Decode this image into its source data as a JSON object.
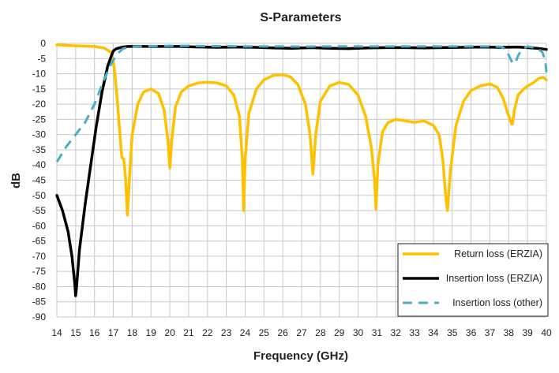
{
  "chart_data": {
    "type": "line",
    "title": "S-Parameters",
    "xlabel": "Frequency (GHz)",
    "ylabel": "dB",
    "xlim": [
      14,
      40
    ],
    "ylim": [
      -90,
      0
    ],
    "x_ticks": [
      14,
      15,
      16,
      17,
      18,
      19,
      20,
      21,
      22,
      23,
      24,
      25,
      26,
      27,
      28,
      29,
      30,
      31,
      32,
      33,
      34,
      35,
      36,
      37,
      38,
      39,
      40
    ],
    "x_tick_labels": [
      "14",
      "15",
      "16",
      "17",
      "18",
      "19",
      "20",
      "21",
      "22",
      "23",
      "24",
      "25",
      "26",
      "27",
      "28",
      "29",
      "30",
      "31",
      "32",
      "33",
      "34",
      "35",
      "36",
      "37",
      "38",
      "39",
      "40"
    ],
    "y_ticks": [
      0,
      -5,
      -10,
      -15,
      -20,
      -25,
      -30,
      -35,
      -40,
      -45,
      -50,
      -55,
      -60,
      -65,
      -70,
      -75,
      -80,
      -85,
      -90
    ],
    "y_tick_labels": [
      "0",
      "-5",
      "-10",
      "-15",
      "-20",
      "-25",
      "-30",
      "-35",
      "-40",
      "-45",
      "-50",
      "-55",
      "-60",
      "-65",
      "-70",
      "-75",
      "-80",
      "-85",
      "-90"
    ],
    "grid": true,
    "legend_position": "bottom-right",
    "series": [
      {
        "name": "Return loss (ERZIA)",
        "color": "#FFC000",
        "dash": "solid",
        "x": [
          14,
          15,
          16,
          16.5,
          16.9,
          17.05,
          17.2,
          17.35,
          17.45,
          17.55,
          17.65,
          17.75,
          17.85,
          18.0,
          18.3,
          18.6,
          19.0,
          19.4,
          19.7,
          19.9,
          20.0,
          20.1,
          20.3,
          20.6,
          21.0,
          21.5,
          22.0,
          22.5,
          23.0,
          23.4,
          23.7,
          23.85,
          23.92,
          24.0,
          24.2,
          24.6,
          25.0,
          25.5,
          26.0,
          26.4,
          26.8,
          27.2,
          27.45,
          27.6,
          27.75,
          28.0,
          28.5,
          29.0,
          29.5,
          30.0,
          30.4,
          30.7,
          30.88,
          30.95,
          31.05,
          31.3,
          31.6,
          32.0,
          32.5,
          33.0,
          33.5,
          34.0,
          34.3,
          34.5,
          34.65,
          34.75,
          34.9,
          35.2,
          35.6,
          36.0,
          36.5,
          37.0,
          37.4,
          37.7,
          37.95,
          38.15,
          38.2,
          38.3,
          38.5,
          38.8,
          39.0,
          39.3,
          39.6,
          39.85,
          40
        ],
        "y": [
          -0.5,
          -0.8,
          -1.0,
          -1.5,
          -3.0,
          -8.0,
          -18.0,
          -30.0,
          -37.5,
          -38.0,
          -44.0,
          -56.5,
          -45.0,
          -30.0,
          -20.0,
          -16.0,
          -15.0,
          -16.5,
          -22.0,
          -32.0,
          -41.0,
          -32.0,
          -21.0,
          -16.0,
          -14.0,
          -13.0,
          -12.8,
          -13.0,
          -14.0,
          -17.0,
          -24.0,
          -38.0,
          -55.0,
          -38.0,
          -23.0,
          -15.0,
          -12.0,
          -10.5,
          -10.3,
          -11.0,
          -13.5,
          -20.0,
          -30.0,
          -43.0,
          -30.0,
          -19.0,
          -14.0,
          -12.8,
          -13.5,
          -17.0,
          -24.0,
          -34.0,
          -45.0,
          -54.5,
          -40.0,
          -29.0,
          -26.0,
          -25.0,
          -25.5,
          -26.0,
          -25.5,
          -27.0,
          -30.0,
          -38.0,
          -50.0,
          -55.0,
          -42.0,
          -27.0,
          -19.0,
          -15.5,
          -14.0,
          -13.3,
          -14.5,
          -18.0,
          -23.0,
          -26.5,
          -26.5,
          -22.0,
          -17.0,
          -15.0,
          -14.0,
          -13.0,
          -11.5,
          -11.2,
          -12.0
        ]
      },
      {
        "name": "Insertion loss (ERZIA)",
        "color": "#000000",
        "dash": "solid",
        "x": [
          14,
          14.3,
          14.6,
          14.8,
          14.95,
          15.0,
          15.05,
          15.2,
          15.5,
          15.8,
          16.1,
          16.4,
          16.7,
          16.9,
          17.0,
          17.15,
          17.3,
          17.5,
          17.8,
          18.5,
          19.5,
          20.5,
          21.5,
          22.5,
          23.5,
          24.5,
          25.5,
          26.5,
          27.5,
          28.5,
          29.5,
          30.5,
          31.5,
          32.5,
          33.5,
          34.5,
          35.5,
          36.5,
          37.5,
          38.5,
          39.5,
          40
        ],
        "y": [
          -50.0,
          -55.0,
          -62.0,
          -70.0,
          -79.0,
          -83.0,
          -80.0,
          -68.0,
          -53.0,
          -40.0,
          -27.0,
          -16.0,
          -7.5,
          -4.0,
          -2.5,
          -1.8,
          -1.5,
          -1.2,
          -1.0,
          -1.0,
          -1.0,
          -1.0,
          -1.2,
          -1.3,
          -1.2,
          -1.3,
          -1.5,
          -1.6,
          -1.4,
          -1.6,
          -1.7,
          -1.5,
          -1.4,
          -1.4,
          -1.5,
          -1.4,
          -1.3,
          -1.2,
          -1.3,
          -1.2,
          -1.6,
          -2.0
        ]
      },
      {
        "name": "Insertion loss (other)",
        "color": "#4BACC6",
        "dash": "dashed",
        "x": [
          14,
          14.5,
          15.0,
          15.5,
          16.0,
          16.5,
          16.9,
          17.2,
          17.5,
          17.8,
          18.2,
          19.0,
          20.0,
          21.0,
          22.0,
          23.0,
          24.0,
          25.0,
          26.0,
          27.0,
          28.0,
          29.0,
          30.0,
          31.0,
          32.0,
          33.0,
          34.0,
          35.0,
          36.0,
          37.0,
          37.6,
          37.85,
          38.05,
          38.2,
          38.35,
          38.5,
          38.7,
          39.0,
          39.5,
          39.8,
          39.95,
          40
        ],
        "y": [
          -39.0,
          -34.0,
          -30.0,
          -26.0,
          -20.0,
          -12.0,
          -6.5,
          -3.5,
          -1.8,
          -1.2,
          -1.0,
          -0.9,
          -0.8,
          -0.8,
          -0.9,
          -0.9,
          -1.0,
          -1.0,
          -1.0,
          -1.1,
          -1.0,
          -1.0,
          -1.0,
          -1.0,
          -1.0,
          -1.0,
          -1.0,
          -1.0,
          -1.0,
          -1.0,
          -1.1,
          -2.0,
          -4.5,
          -6.5,
          -6.5,
          -4.0,
          -2.0,
          -1.0,
          -1.5,
          -3.0,
          -6.0,
          -9.5
        ]
      }
    ]
  }
}
